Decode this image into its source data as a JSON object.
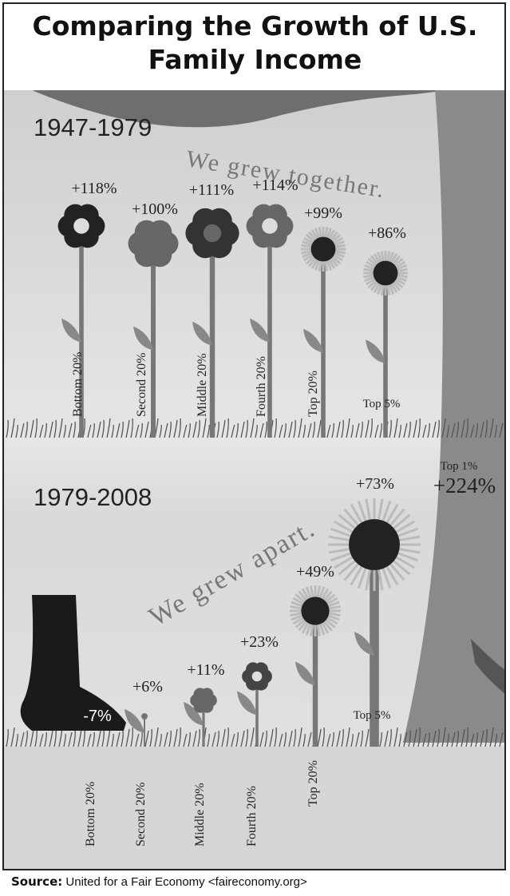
{
  "title": "Comparing the Growth of U.S. Family Income",
  "panels": [
    {
      "period": "1947-1979",
      "slogan": "We grew together.",
      "groups": [
        {
          "label": "Bottom 20%",
          "change": "+118%"
        },
        {
          "label": "Second 20%",
          "change": "+100%"
        },
        {
          "label": "Middle 20%",
          "change": "+111%"
        },
        {
          "label": "Fourth 20%",
          "change": "+114%"
        },
        {
          "label": "Top 20%",
          "change": "+99%"
        },
        {
          "label": "Top 5%",
          "change": "+86%"
        }
      ]
    },
    {
      "period": "1979-2008",
      "slogan": "We grew apart.",
      "groups": [
        {
          "label": "Bottom 20%",
          "change": "-7%"
        },
        {
          "label": "Second 20%",
          "change": "+6%"
        },
        {
          "label": "Middle 20%",
          "change": "+11%"
        },
        {
          "label": "Fourth 20%",
          "change": "+23%"
        },
        {
          "label": "Top 20%",
          "change": "+49%"
        },
        {
          "label": "Top 5%",
          "change": "+73%"
        },
        {
          "label": "Top 1%",
          "change": "+224%"
        }
      ]
    }
  ],
  "source": {
    "label": "Source:",
    "text": "United for a Fair Economy <faireconomy.org>"
  }
}
